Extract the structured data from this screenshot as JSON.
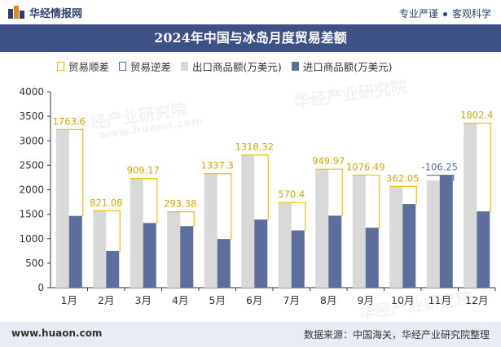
{
  "header": {
    "brand": "华经情报网",
    "tagline_left": "专业严谨",
    "tagline_right": "客观科学"
  },
  "footer": {
    "site": "www.huaon.com",
    "source": "数据来源：中国海关，华经产业研究院整理"
  },
  "watermarks": [
    "华经产业研究院",
    "www.huaon.com"
  ],
  "colors": {
    "export": "#d9d9d9",
    "import": "#5d6e9c",
    "surplus": "#f5c000",
    "deficit": "#4a6fa0",
    "title_bg": "#3d5187"
  },
  "chart_data": {
    "type": "bar",
    "title": "2024年中国与冰岛月度贸易差额",
    "categories": [
      "1月",
      "2月",
      "3月",
      "4月",
      "5月",
      "6月",
      "7月",
      "8月",
      "9月",
      "10月",
      "11月",
      "12月"
    ],
    "series": [
      {
        "name": "出口商品额(万美元)",
        "values": [
          3230,
          1570,
          2230,
          1550,
          2330,
          2710,
          1740,
          2420,
          2300,
          2070,
          2190,
          3360
        ]
      },
      {
        "name": "进口商品额(万美元)",
        "values": [
          1466,
          749,
          1321,
          1257,
          993,
          1392,
          1170,
          1470,
          1224,
          1708,
          2296,
          1558
        ]
      }
    ],
    "balance": {
      "surplus_name": "贸易顺差",
      "deficit_name": "贸易逆差",
      "labels": [
        "1763.6",
        "821.08",
        "909.17",
        "293.38",
        "1337.3",
        "1318.32",
        "570.4",
        "949.97",
        "1076.49",
        "362.05",
        "-106.25",
        "1802.4"
      ],
      "values": [
        1763.6,
        821.08,
        909.17,
        293.38,
        1337.3,
        1318.32,
        570.4,
        949.97,
        1076.49,
        362.05,
        -106.25,
        1802.4
      ]
    },
    "ylim": [
      0,
      4000
    ],
    "yticks": [
      0,
      500,
      1000,
      1500,
      2000,
      2500,
      3000,
      3500,
      4000
    ],
    "xlabel": "",
    "ylabel": "",
    "grid": false,
    "legend": "top-left"
  }
}
